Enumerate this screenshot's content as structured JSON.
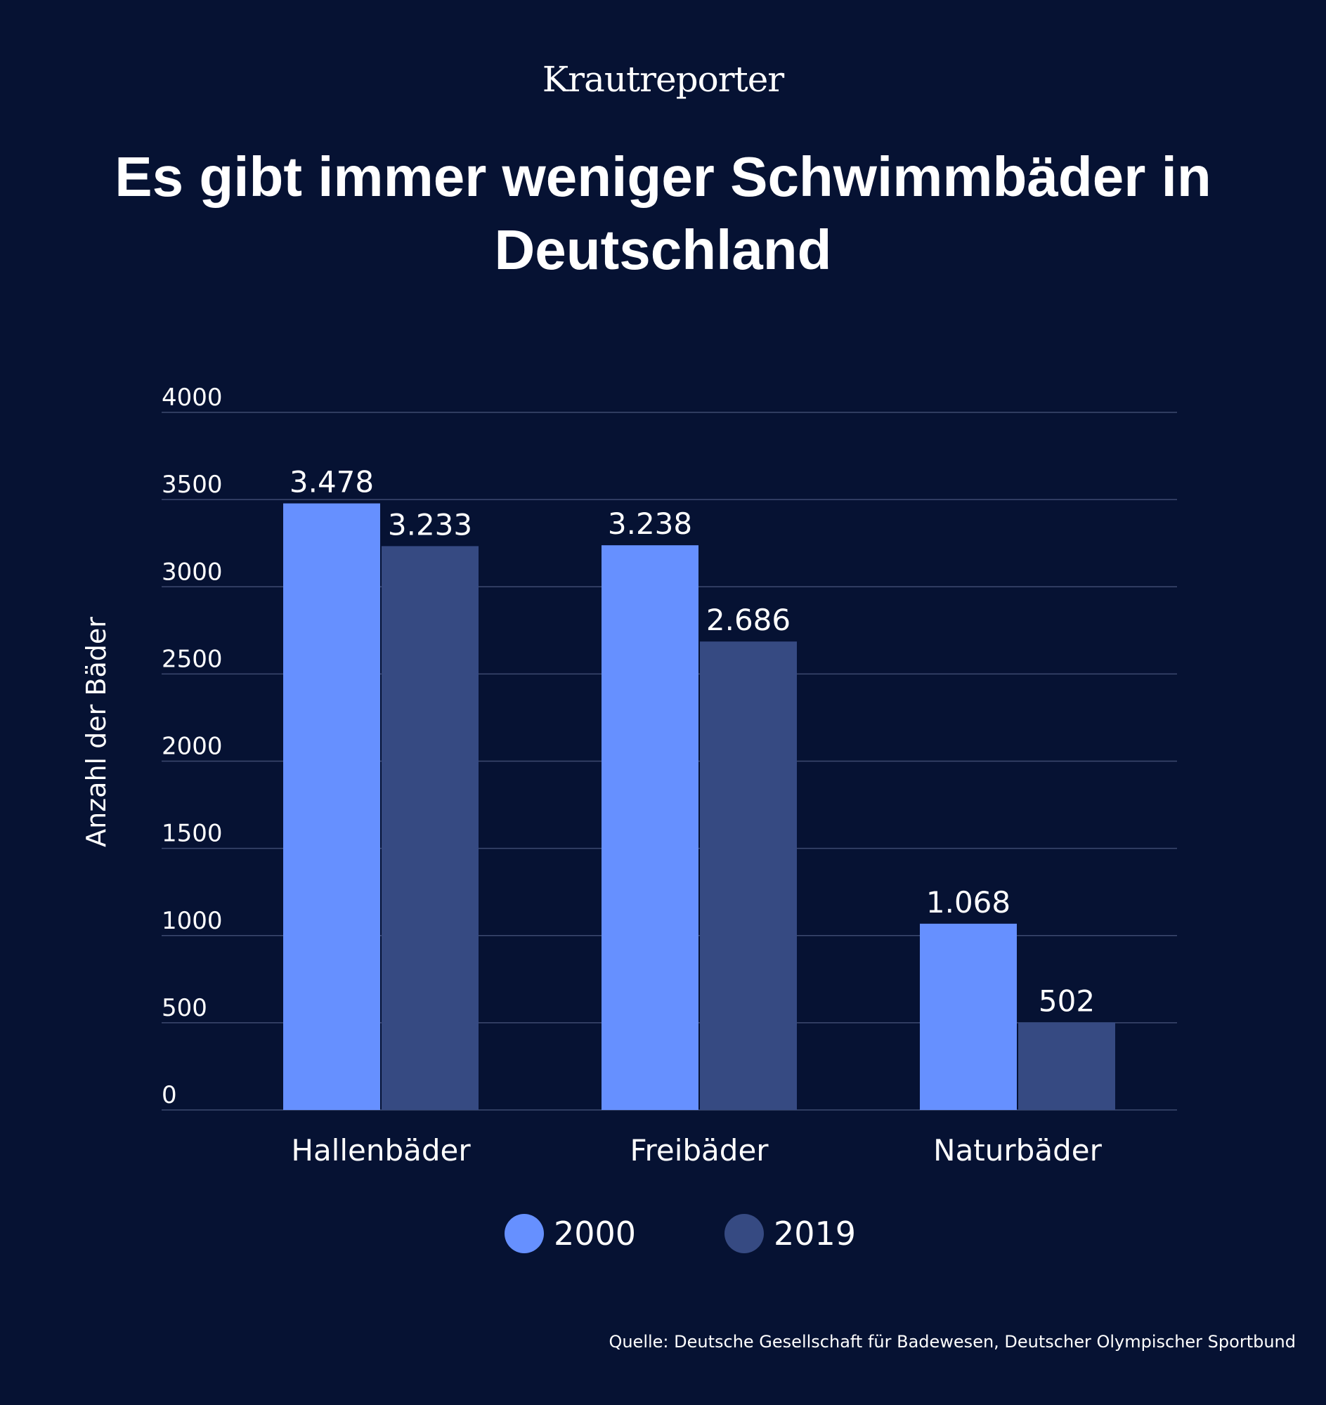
{
  "brand": {
    "name": "Krautreporter"
  },
  "chart_data": {
    "type": "bar",
    "title": "Es gibt immer weniger Schwimmbäder in Deutschland",
    "ylabel": "Anzahl der Bäder",
    "xlabel": "",
    "ylim": [
      0,
      4000
    ],
    "yticks": [
      0,
      500,
      1000,
      1500,
      2000,
      2500,
      3000,
      3500,
      4000
    ],
    "grid": true,
    "legend_position": "bottom-center",
    "categories": [
      "Hallenbäder",
      "Freibäder",
      "Naturbäder"
    ],
    "series": [
      {
        "name": "2000",
        "color": "#6690ff",
        "values": [
          3478,
          3238,
          1068
        ],
        "labels": [
          "3.478",
          "3.238",
          "1.068"
        ]
      },
      {
        "name": "2019",
        "color": "#364a82",
        "values": [
          3233,
          2686,
          502
        ],
        "labels": [
          "3.233",
          "2.686",
          "502"
        ]
      }
    ]
  },
  "source": "Quelle: Deutsche Gesellschaft für Badewesen, Deutscher Olympischer Sportbund"
}
